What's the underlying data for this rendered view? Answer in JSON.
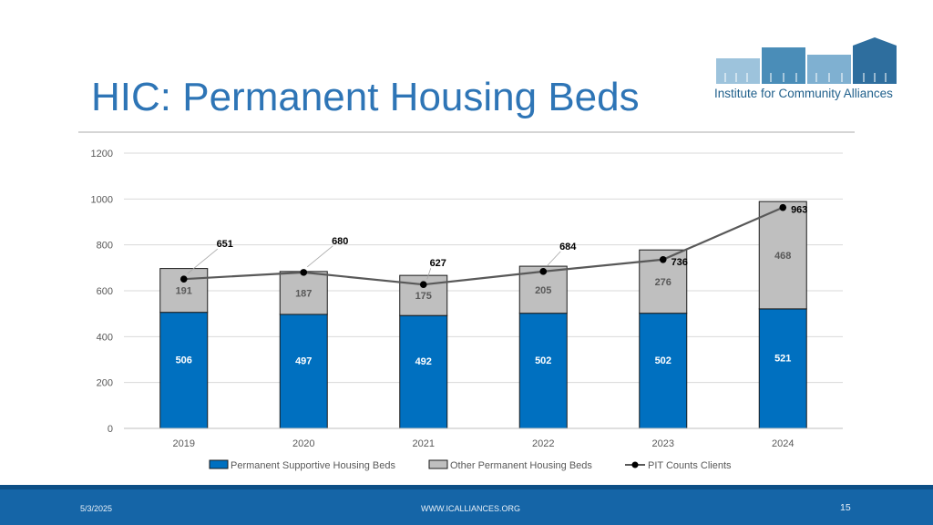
{
  "slide": {
    "title": "HIC: Permanent Housing Beds",
    "logo_text": "Institute for Community Alliances"
  },
  "footer": {
    "date": "5/3/2025",
    "url": "WWW.ICALLIANCES.ORG",
    "page": "15"
  },
  "colors": {
    "title": "#2E75B6",
    "psh": "#0070C0",
    "other": "#BFBFBF",
    "line": "#595959",
    "footer": "#1565A7",
    "logo_light": "#9DC3DC",
    "logo_mid": "#4A8DB8",
    "logo_dark": "#2E6E9E"
  },
  "icons": {
    "logo": "housing-skyline-icon",
    "legend_line": "line-marker-icon"
  },
  "chart_data": {
    "type": "bar",
    "stacked": true,
    "categories": [
      "2019",
      "2020",
      "2021",
      "2022",
      "2023",
      "2024"
    ],
    "series": [
      {
        "name": "Permanent Supportive Housing Beds",
        "type": "bar",
        "values": [
          506,
          497,
          492,
          502,
          502,
          521
        ]
      },
      {
        "name": "Other Permanent Housing Beds",
        "type": "bar",
        "values": [
          191,
          187,
          175,
          205,
          276,
          468
        ]
      },
      {
        "name": "PIT Counts Clients",
        "type": "line",
        "values": [
          651,
          680,
          627,
          684,
          736,
          963
        ]
      }
    ],
    "y_ticks": [
      0,
      200,
      400,
      600,
      800,
      1000,
      1200
    ],
    "ylim": [
      0,
      1200
    ],
    "grid": true,
    "legend_position": "bottom"
  }
}
